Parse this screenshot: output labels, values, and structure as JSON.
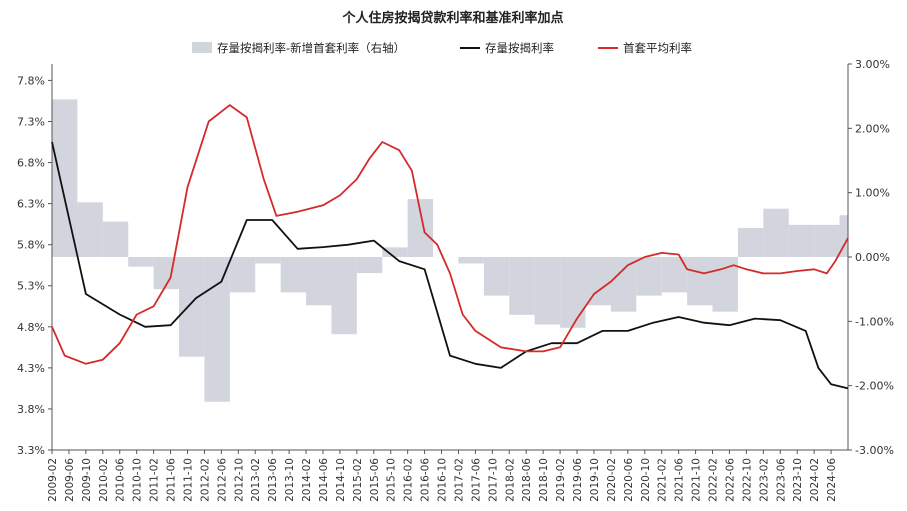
{
  "chart_data": {
    "type": "line+bar",
    "title": "个人住房按揭贷款利率和基准利率加点",
    "legend": {
      "placement": "top",
      "entries": [
        {
          "label": "存量按揭利率-新增首套利率（右轴）",
          "kind": "bar",
          "color": "#d3d5de"
        },
        {
          "label": "存量按揭利率",
          "kind": "line",
          "color": "#111111"
        },
        {
          "label": "首套平均利率",
          "kind": "line",
          "color": "#d42a2a"
        }
      ]
    },
    "left_axis": {
      "ylim": [
        3.3,
        8.0
      ],
      "ticks": [
        3.3,
        3.8,
        4.3,
        4.8,
        5.3,
        5.8,
        6.3,
        6.8,
        7.3,
        7.8
      ],
      "tick_labels": [
        "3.3%",
        "3.8%",
        "4.3%",
        "4.8%",
        "5.3%",
        "5.8%",
        "6.3%",
        "6.8%",
        "7.3%",
        "7.8%"
      ]
    },
    "right_axis": {
      "ylim": [
        -3.0,
        3.0
      ],
      "ticks": [
        -3.0,
        -2.0,
        -1.0,
        0.0,
        1.0,
        2.0,
        3.0
      ],
      "tick_labels": [
        "-3.00%",
        "-2.00%",
        "-1.00%",
        "0.00%",
        "1.00%",
        "2.00%",
        "3.00%"
      ]
    },
    "x_range": [
      "2009-02",
      "2024-10"
    ],
    "x_tick_labels": [
      "2009-02",
      "2009-06",
      "2009-10",
      "2010-02",
      "2010-06",
      "2010-10",
      "2011-02",
      "2011-06",
      "2011-10",
      "2012-02",
      "2012-06",
      "2012-10",
      "2013-02",
      "2013-06",
      "2013-10",
      "2014-02",
      "2014-06",
      "2014-10",
      "2015-02",
      "2015-06",
      "2015-10",
      "2016-02",
      "2016-06",
      "2016-10",
      "2017-02",
      "2017-06",
      "2017-10",
      "2018-02",
      "2018-06",
      "2018-10",
      "2019-02",
      "2019-06",
      "2019-10",
      "2020-02",
      "2020-06",
      "2020-10",
      "2021-02",
      "2021-06",
      "2021-10",
      "2022-02",
      "2022-06",
      "2022-10",
      "2023-02",
      "2023-06",
      "2023-10",
      "2024-02",
      "2024-06"
    ],
    "bars": {
      "name": "存量按揭利率-新增首套利率（右轴）",
      "axis": "right",
      "values": [
        {
          "start": "2009-02",
          "end": "2009-08",
          "value": 2.45
        },
        {
          "start": "2009-08",
          "end": "2010-02",
          "value": 0.85
        },
        {
          "start": "2010-02",
          "end": "2010-08",
          "value": 0.55
        },
        {
          "start": "2010-08",
          "end": "2011-02",
          "value": -0.15
        },
        {
          "start": "2011-02",
          "end": "2011-08",
          "value": -0.5
        },
        {
          "start": "2011-08",
          "end": "2012-02",
          "value": -1.55
        },
        {
          "start": "2012-02",
          "end": "2012-08",
          "value": -2.25
        },
        {
          "start": "2012-08",
          "end": "2013-02",
          "value": -0.55
        },
        {
          "start": "2013-02",
          "end": "2013-08",
          "value": -0.1
        },
        {
          "start": "2013-08",
          "end": "2014-02",
          "value": -0.55
        },
        {
          "start": "2014-02",
          "end": "2014-08",
          "value": -0.75
        },
        {
          "start": "2014-08",
          "end": "2015-02",
          "value": -1.2
        },
        {
          "start": "2015-02",
          "end": "2015-08",
          "value": -0.25
        },
        {
          "start": "2015-08",
          "end": "2016-02",
          "value": 0.15
        },
        {
          "start": "2016-02",
          "end": "2016-08",
          "value": 0.9
        },
        {
          "start": "2016-08",
          "end": "2017-02",
          "value": 0.0
        },
        {
          "start": "2017-02",
          "end": "2017-08",
          "value": -0.1
        },
        {
          "start": "2017-08",
          "end": "2018-02",
          "value": -0.6
        },
        {
          "start": "2018-02",
          "end": "2018-08",
          "value": -0.9
        },
        {
          "start": "2018-08",
          "end": "2019-02",
          "value": -1.05
        },
        {
          "start": "2019-02",
          "end": "2019-08",
          "value": -1.1
        },
        {
          "start": "2019-08",
          "end": "2020-02",
          "value": -0.75
        },
        {
          "start": "2020-02",
          "end": "2020-08",
          "value": -0.85
        },
        {
          "start": "2020-08",
          "end": "2021-02",
          "value": -0.6
        },
        {
          "start": "2021-02",
          "end": "2021-08",
          "value": -0.55
        },
        {
          "start": "2021-08",
          "end": "2022-02",
          "value": -0.75
        },
        {
          "start": "2022-02",
          "end": "2022-08",
          "value": -0.85
        },
        {
          "start": "2022-08",
          "end": "2023-02",
          "value": 0.45
        },
        {
          "start": "2023-02",
          "end": "2023-08",
          "value": 0.75
        },
        {
          "start": "2023-08",
          "end": "2024-02",
          "value": 0.5
        },
        {
          "start": "2024-02",
          "end": "2024-08",
          "value": 0.5
        },
        {
          "start": "2024-08",
          "end": "2024-10",
          "value": 0.65
        }
      ]
    },
    "series": [
      {
        "name": "存量按揭利率",
        "axis": "left",
        "color": "#111111",
        "points": [
          [
            "2009-02",
            7.05
          ],
          [
            "2009-10",
            5.2
          ],
          [
            "2010-06",
            4.95
          ],
          [
            "2010-12",
            4.8
          ],
          [
            "2011-06",
            4.82
          ],
          [
            "2011-12",
            5.15
          ],
          [
            "2012-06",
            5.35
          ],
          [
            "2012-12",
            6.1
          ],
          [
            "2013-06",
            6.1
          ],
          [
            "2013-12",
            5.75
          ],
          [
            "2014-06",
            5.77
          ],
          [
            "2014-12",
            5.8
          ],
          [
            "2015-06",
            5.85
          ],
          [
            "2015-12",
            5.6
          ],
          [
            "2016-06",
            5.5
          ],
          [
            "2016-12",
            4.45
          ],
          [
            "2017-06",
            4.35
          ],
          [
            "2017-12",
            4.3
          ],
          [
            "2018-06",
            4.5
          ],
          [
            "2018-12",
            4.6
          ],
          [
            "2019-06",
            4.6
          ],
          [
            "2019-12",
            4.75
          ],
          [
            "2020-06",
            4.75
          ],
          [
            "2020-12",
            4.85
          ],
          [
            "2021-06",
            4.92
          ],
          [
            "2021-12",
            4.85
          ],
          [
            "2022-06",
            4.82
          ],
          [
            "2022-12",
            4.9
          ],
          [
            "2023-06",
            4.88
          ],
          [
            "2023-12",
            4.75
          ],
          [
            "2024-03",
            4.3
          ],
          [
            "2024-06",
            4.1
          ],
          [
            "2024-10",
            4.05
          ]
        ]
      },
      {
        "name": "首套平均利率",
        "axis": "left",
        "color": "#d42a2a",
        "points": [
          [
            "2009-02",
            4.8
          ],
          [
            "2009-05",
            4.45
          ],
          [
            "2009-10",
            4.35
          ],
          [
            "2010-02",
            4.4
          ],
          [
            "2010-06",
            4.6
          ],
          [
            "2010-10",
            4.95
          ],
          [
            "2011-02",
            5.05
          ],
          [
            "2011-06",
            5.4
          ],
          [
            "2011-10",
            6.5
          ],
          [
            "2012-03",
            7.3
          ],
          [
            "2012-08",
            7.5
          ],
          [
            "2012-12",
            7.35
          ],
          [
            "2013-04",
            6.6
          ],
          [
            "2013-07",
            6.15
          ],
          [
            "2013-12",
            6.2
          ],
          [
            "2014-06",
            6.28
          ],
          [
            "2014-10",
            6.4
          ],
          [
            "2015-02",
            6.6
          ],
          [
            "2015-05",
            6.85
          ],
          [
            "2015-08",
            7.05
          ],
          [
            "2015-12",
            6.95
          ],
          [
            "2016-03",
            6.7
          ],
          [
            "2016-06",
            5.95
          ],
          [
            "2016-09",
            5.8
          ],
          [
            "2016-12",
            5.45
          ],
          [
            "2017-03",
            4.95
          ],
          [
            "2017-06",
            4.75
          ],
          [
            "2017-12",
            4.55
          ],
          [
            "2018-06",
            4.5
          ],
          [
            "2018-10",
            4.5
          ],
          [
            "2019-02",
            4.55
          ],
          [
            "2019-06",
            4.9
          ],
          [
            "2019-10",
            5.2
          ],
          [
            "2020-02",
            5.35
          ],
          [
            "2020-06",
            5.55
          ],
          [
            "2020-10",
            5.65
          ],
          [
            "2021-02",
            5.7
          ],
          [
            "2021-06",
            5.68
          ],
          [
            "2021-08",
            5.5
          ],
          [
            "2021-12",
            5.45
          ],
          [
            "2022-04",
            5.5
          ],
          [
            "2022-07",
            5.55
          ],
          [
            "2022-10",
            5.5
          ],
          [
            "2023-02",
            5.45
          ],
          [
            "2023-06",
            5.45
          ],
          [
            "2023-10",
            5.48
          ],
          [
            "2024-02",
            5.5
          ],
          [
            "2024-05",
            5.45
          ],
          [
            "2024-07",
            5.6
          ],
          [
            "2024-10",
            5.88
          ]
        ]
      }
    ],
    "grid": false
  }
}
